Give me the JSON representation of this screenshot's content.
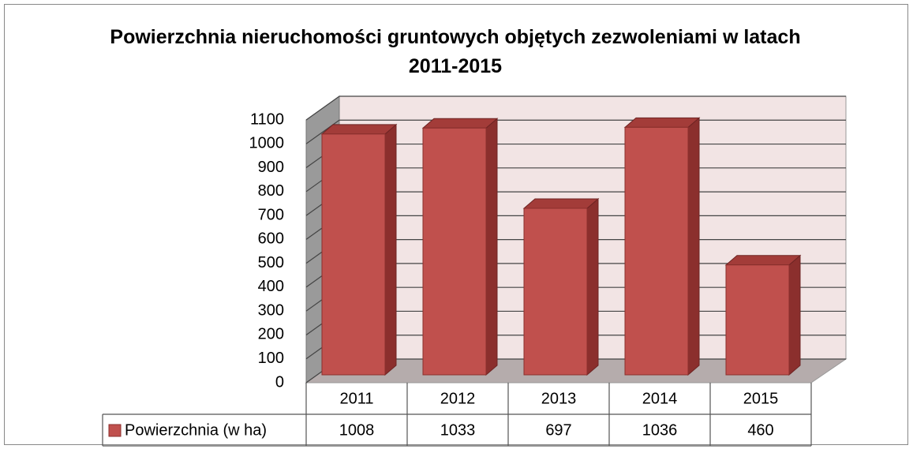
{
  "chart_data": {
    "type": "bar3d",
    "title": "Powierzchnia nieruchomości gruntowych objętych zezwoleniami w latach 2011-2015",
    "categories": [
      "2011",
      "2012",
      "2013",
      "2014",
      "2015"
    ],
    "series": [
      {
        "name": "Powierzchnia (w ha)",
        "color": "#c0504d",
        "values": [
          1008,
          1033,
          697,
          1036,
          460
        ]
      }
    ],
    "ylim": [
      0,
      1100
    ],
    "yticks": [
      0,
      100,
      200,
      300,
      400,
      500,
      600,
      700,
      800,
      900,
      1000,
      1100
    ],
    "grid": true,
    "data_table": true
  }
}
